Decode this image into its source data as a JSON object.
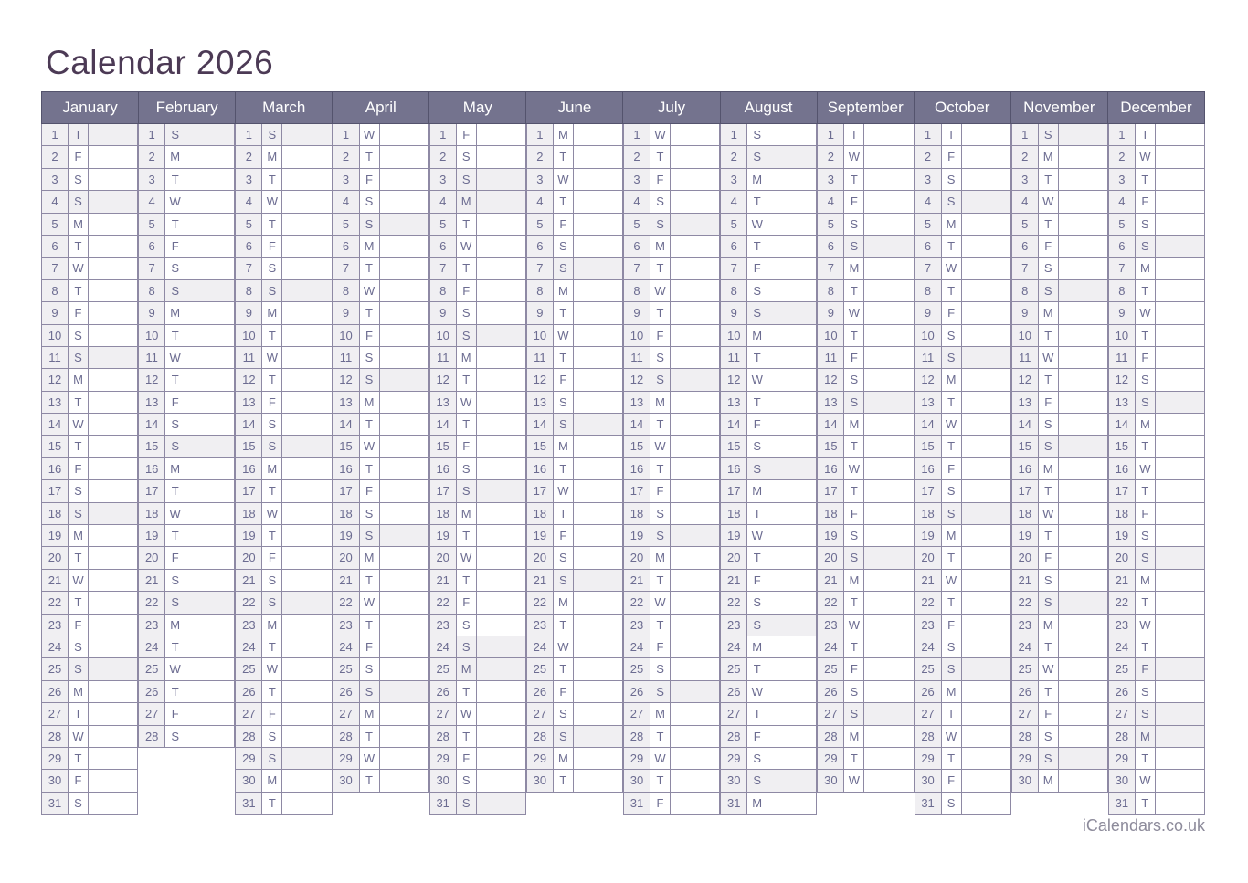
{
  "page": {
    "title": "Calendar 2026",
    "footer": "iCalendars.co.uk"
  },
  "colors": {
    "header_bg": "#74738e",
    "header_separator": "#54536d",
    "cell_border": "#8e89a4",
    "shaded_cell": "#f0eff2",
    "day_text": "#6c6c91",
    "title_text": "#4c3a55",
    "footer_text": "#8d8b9b",
    "page_bg": "#ffffff"
  },
  "calendar": {
    "year": 2026,
    "legend_note": "shaded_days are the gray-highlighted rows (Sundays and public holidays)",
    "months": [
      {
        "name": "January",
        "day_count": 31,
        "weekday_letters": [
          "T",
          "F",
          "S",
          "S",
          "M",
          "T",
          "W",
          "T",
          "F",
          "S",
          "S",
          "M",
          "T",
          "W",
          "T",
          "F",
          "S",
          "S",
          "M",
          "T",
          "W",
          "T",
          "F",
          "S",
          "S",
          "M",
          "T",
          "W",
          "T",
          "F",
          "S"
        ],
        "shaded_days": [
          1,
          4,
          11,
          18,
          25
        ]
      },
      {
        "name": "February",
        "day_count": 28,
        "weekday_letters": [
          "S",
          "M",
          "T",
          "W",
          "T",
          "F",
          "S",
          "S",
          "M",
          "T",
          "W",
          "T",
          "F",
          "S",
          "S",
          "M",
          "T",
          "W",
          "T",
          "F",
          "S",
          "S",
          "M",
          "T",
          "W",
          "T",
          "F",
          "S"
        ],
        "shaded_days": [
          1,
          8,
          15,
          22
        ]
      },
      {
        "name": "March",
        "day_count": 31,
        "weekday_letters": [
          "S",
          "M",
          "T",
          "W",
          "T",
          "F",
          "S",
          "S",
          "M",
          "T",
          "W",
          "T",
          "F",
          "S",
          "S",
          "M",
          "T",
          "W",
          "T",
          "F",
          "S",
          "S",
          "M",
          "T",
          "W",
          "T",
          "F",
          "S",
          "S",
          "M",
          "T"
        ],
        "shaded_days": [
          1,
          8,
          15,
          22,
          29
        ]
      },
      {
        "name": "April",
        "day_count": 30,
        "weekday_letters": [
          "W",
          "T",
          "F",
          "S",
          "S",
          "M",
          "T",
          "W",
          "T",
          "F",
          "S",
          "S",
          "M",
          "T",
          "W",
          "T",
          "F",
          "S",
          "S",
          "M",
          "T",
          "W",
          "T",
          "F",
          "S",
          "S",
          "M",
          "T",
          "W",
          "T"
        ],
        "shaded_days": [
          5,
          12,
          19,
          26
        ]
      },
      {
        "name": "May",
        "day_count": 31,
        "weekday_letters": [
          "F",
          "S",
          "S",
          "M",
          "T",
          "W",
          "T",
          "F",
          "S",
          "S",
          "M",
          "T",
          "W",
          "T",
          "F",
          "S",
          "S",
          "M",
          "T",
          "W",
          "T",
          "F",
          "S",
          "S",
          "M",
          "T",
          "W",
          "T",
          "F",
          "S",
          "S"
        ],
        "shaded_days": [
          3,
          4,
          10,
          17,
          24,
          25,
          31
        ]
      },
      {
        "name": "June",
        "day_count": 30,
        "weekday_letters": [
          "M",
          "T",
          "W",
          "T",
          "F",
          "S",
          "S",
          "M",
          "T",
          "W",
          "T",
          "F",
          "S",
          "S",
          "M",
          "T",
          "W",
          "T",
          "F",
          "S",
          "S",
          "M",
          "T",
          "W",
          "T",
          "F",
          "S",
          "S",
          "M",
          "T"
        ],
        "shaded_days": [
          7,
          14,
          21,
          28
        ]
      },
      {
        "name": "July",
        "day_count": 31,
        "weekday_letters": [
          "W",
          "T",
          "F",
          "S",
          "S",
          "M",
          "T",
          "W",
          "T",
          "F",
          "S",
          "S",
          "M",
          "T",
          "W",
          "T",
          "F",
          "S",
          "S",
          "M",
          "T",
          "W",
          "T",
          "F",
          "S",
          "S",
          "M",
          "T",
          "W",
          "T",
          "F"
        ],
        "shaded_days": [
          5,
          12,
          19,
          26
        ]
      },
      {
        "name": "August",
        "day_count": 31,
        "weekday_letters": [
          "S",
          "S",
          "M",
          "T",
          "W",
          "T",
          "F",
          "S",
          "S",
          "M",
          "T",
          "W",
          "T",
          "F",
          "S",
          "S",
          "M",
          "T",
          "W",
          "T",
          "F",
          "S",
          "S",
          "M",
          "T",
          "W",
          "T",
          "F",
          "S",
          "S",
          "M"
        ],
        "shaded_days": [
          2,
          9,
          16,
          23,
          30
        ]
      },
      {
        "name": "September",
        "day_count": 30,
        "weekday_letters": [
          "T",
          "W",
          "T",
          "F",
          "S",
          "S",
          "M",
          "T",
          "W",
          "T",
          "F",
          "S",
          "S",
          "M",
          "T",
          "W",
          "T",
          "F",
          "S",
          "S",
          "M",
          "T",
          "W",
          "T",
          "F",
          "S",
          "S",
          "M",
          "T",
          "W"
        ],
        "shaded_days": [
          6,
          13,
          20,
          27
        ]
      },
      {
        "name": "October",
        "day_count": 31,
        "weekday_letters": [
          "T",
          "F",
          "S",
          "S",
          "M",
          "T",
          "W",
          "T",
          "F",
          "S",
          "S",
          "M",
          "T",
          "W",
          "T",
          "F",
          "S",
          "S",
          "M",
          "T",
          "W",
          "T",
          "F",
          "S",
          "S",
          "M",
          "T",
          "W",
          "T",
          "F",
          "S"
        ],
        "shaded_days": [
          4,
          11,
          18,
          25
        ]
      },
      {
        "name": "November",
        "day_count": 30,
        "weekday_letters": [
          "S",
          "M",
          "T",
          "W",
          "T",
          "F",
          "S",
          "S",
          "M",
          "T",
          "W",
          "T",
          "F",
          "S",
          "S",
          "M",
          "T",
          "W",
          "T",
          "F",
          "S",
          "S",
          "M",
          "T",
          "W",
          "T",
          "F",
          "S",
          "S",
          "M"
        ],
        "shaded_days": [
          1,
          8,
          15,
          22,
          29
        ]
      },
      {
        "name": "December",
        "day_count": 31,
        "weekday_letters": [
          "T",
          "W",
          "T",
          "F",
          "S",
          "S",
          "M",
          "T",
          "W",
          "T",
          "F",
          "S",
          "S",
          "M",
          "T",
          "W",
          "T",
          "F",
          "S",
          "S",
          "M",
          "T",
          "W",
          "T",
          "F",
          "S",
          "S",
          "M",
          "T",
          "W",
          "T"
        ],
        "shaded_days": [
          6,
          13,
          20,
          25,
          27,
          28
        ]
      }
    ]
  }
}
